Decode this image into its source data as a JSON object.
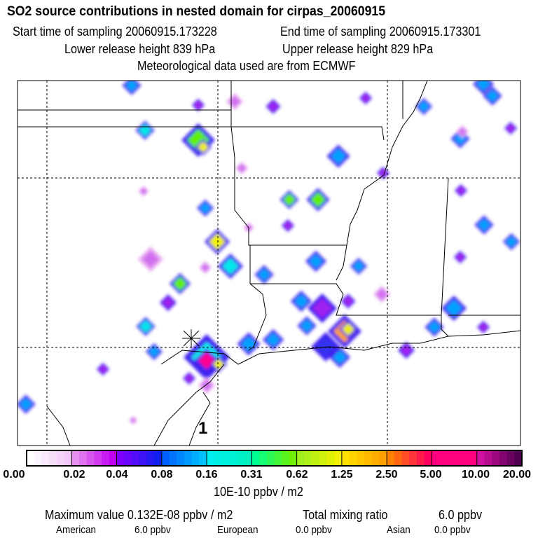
{
  "header": {
    "title": "SO2 source contributions in nested domain for cirpas_20060915",
    "start_label": "Start time of sampling 20060915.173228",
    "end_label": "End time of sampling 20060915.173301",
    "lower_label": "Lower release height  839 hPa",
    "upper_label": "Upper release height  829 hPa",
    "met_label": "Meteorological data used are from ECMWF"
  },
  "map": {
    "receptor_label": "1"
  },
  "colorbar": {
    "ticks": [
      "0.00",
      "0.02",
      "0.04",
      "0.08",
      "0.16",
      "0.31",
      "0.62",
      "1.25",
      "2.50",
      "5.00",
      "10.00",
      "20.00"
    ],
    "units": "10E-10 ppbv / m2",
    "segments": [
      [
        "#ffffff",
        "#f0c8f8"
      ],
      [
        "#e890f0",
        "#c000f0"
      ],
      [
        "#8000ff",
        "#1020f0"
      ],
      [
        "#0060ff",
        "#00c0ff"
      ],
      [
        "#00f0f0",
        "#00f0c0"
      ],
      [
        "#00ff90",
        "#70f000"
      ],
      [
        "#a0f020",
        "#f0f000"
      ],
      [
        "#ffe000",
        "#ffa000"
      ],
      [
        "#ff8000",
        "#ff0060"
      ],
      [
        "#ff0080",
        "#ff0080"
      ],
      [
        "#d010a0",
        "#500050"
      ]
    ]
  },
  "footer": {
    "max_label": "Maximum value  0.132E-08 ppbv / m2",
    "total_label": "Total mixing ratio",
    "total_value": "6.0 ppbv",
    "american_label": "American",
    "american_value": "6.0 ppbv",
    "european_label": "European",
    "european_value": "0.0 ppbv",
    "asian_label": "Asian",
    "asian_value": "0.0 ppbv"
  }
}
